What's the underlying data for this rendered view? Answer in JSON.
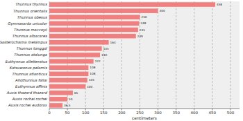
{
  "chart_data": {
    "type": "bar",
    "orientation": "horizontal",
    "categories": [
      "Thunnus thynnus",
      "Thunnus orientalis",
      "Thunnus obesus",
      "Gymnosarda unicolor",
      "Thunnus maccoyii",
      "Thunnus albacares",
      "Gasterochisma melampus",
      "Thunnus tonggol",
      "Thunnus atalunga",
      "Euthynnus alletteratus",
      "Katsuwonus pelamis",
      "Thunnus atlanticus",
      "Allothunnus fallai",
      "Euthynnus affinis",
      "Auxis thazard thazard",
      "Auxis rochei rochei",
      "Auxis rochei eudorax"
    ],
    "values": [
      458,
      300,
      250,
      248,
      245,
      239,
      164,
      145,
      140,
      122,
      108,
      108,
      105,
      100,
      65,
      50,
      36.5
    ],
    "color": "#f08080",
    "x_label": "centimeters",
    "xlim": [
      0,
      525
    ],
    "xticks": [
      0,
      50,
      100,
      150,
      200,
      250,
      300,
      350,
      400,
      450,
      500
    ],
    "grid": true,
    "data_labels": true
  }
}
